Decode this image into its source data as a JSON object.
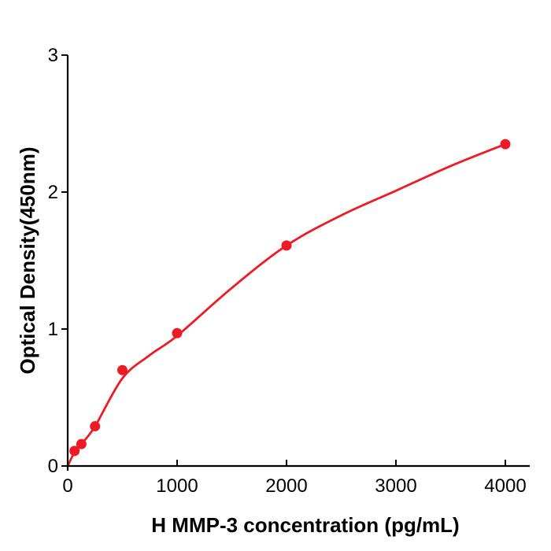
{
  "figure": {
    "background_color": "#ffffff",
    "axis_color": "#000000",
    "accent_color": "#ed1c24"
  },
  "chart_data": {
    "type": "scatter",
    "title": "",
    "xlabel": "H  MMP-3 concentration (pg/mL)",
    "ylabel": "Optical Density(450nm)",
    "xlim": [
      0,
      4000
    ],
    "ylim": [
      0,
      3
    ],
    "x_ticks": [
      0,
      1000,
      2000,
      3000,
      4000
    ],
    "y_ticks": [
      0,
      1,
      2,
      3
    ],
    "grid": false,
    "legend": "none",
    "series": [
      {
        "name": "H MMP-3 standard curve",
        "color": "#ed1c24",
        "marker": "circle",
        "points": [
          {
            "x": 62.5,
            "y": 0.11
          },
          {
            "x": 125,
            "y": 0.16
          },
          {
            "x": 250,
            "y": 0.29
          },
          {
            "x": 500,
            "y": 0.7
          },
          {
            "x": 1000,
            "y": 0.97
          },
          {
            "x": 2000,
            "y": 1.61
          },
          {
            "x": 4000,
            "y": 2.35
          }
        ],
        "fit_curve": [
          {
            "x": 0,
            "y": 0.0
          },
          {
            "x": 62.5,
            "y": 0.1
          },
          {
            "x": 125,
            "y": 0.16
          },
          {
            "x": 250,
            "y": 0.29
          },
          {
            "x": 500,
            "y": 0.64
          },
          {
            "x": 750,
            "y": 0.81
          },
          {
            "x": 1000,
            "y": 0.95
          },
          {
            "x": 1500,
            "y": 1.3
          },
          {
            "x": 2000,
            "y": 1.61
          },
          {
            "x": 2500,
            "y": 1.83
          },
          {
            "x": 3000,
            "y": 2.01
          },
          {
            "x": 3500,
            "y": 2.19
          },
          {
            "x": 4000,
            "y": 2.35
          }
        ]
      }
    ]
  }
}
